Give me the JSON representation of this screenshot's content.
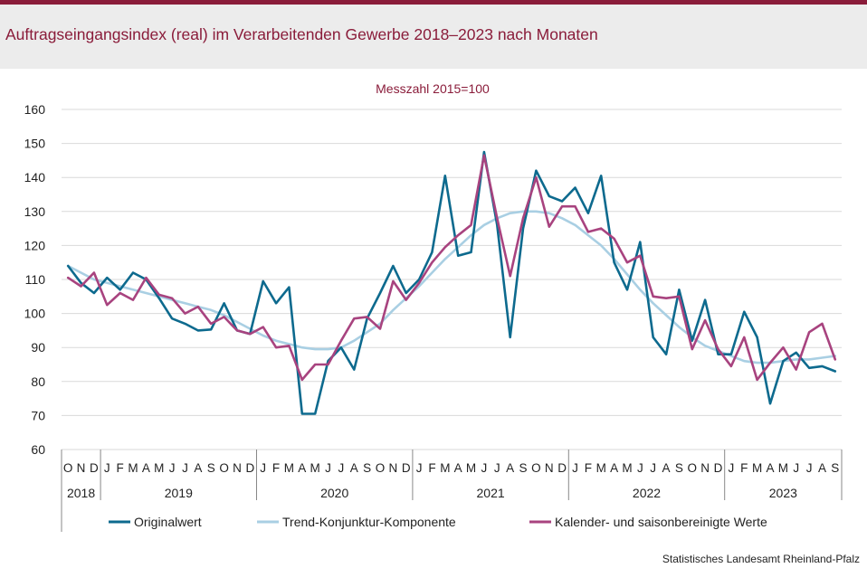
{
  "header": {
    "title": "Auftragseingangsindex (real) im Verarbeitenden Gewerbe 2018–2023 nach Monaten"
  },
  "footer": {
    "source": "Statistisches Landesamt Rheinland-Pfalz"
  },
  "colors": {
    "brand": "#8a1c3a",
    "original": "#0d6a8e",
    "trend": "#a9cfe3",
    "adjusted": "#a8437f"
  },
  "chart_data": {
    "type": "line",
    "subtitle": "Messzahl 2015=100",
    "ylim": [
      60,
      160
    ],
    "yticks": [
      60,
      70,
      80,
      90,
      100,
      110,
      120,
      130,
      140,
      150,
      160
    ],
    "grid": true,
    "legend_position": "bottom",
    "months": [
      "O",
      "N",
      "D",
      "J",
      "F",
      "M",
      "A",
      "M",
      "J",
      "J",
      "A",
      "S",
      "O",
      "N",
      "D",
      "J",
      "F",
      "M",
      "A",
      "M",
      "J",
      "J",
      "A",
      "S",
      "O",
      "N",
      "D",
      "J",
      "F",
      "M",
      "A",
      "M",
      "J",
      "J",
      "A",
      "S",
      "O",
      "N",
      "D",
      "J",
      "F",
      "M",
      "A",
      "M",
      "J",
      "J",
      "A",
      "S",
      "O",
      "N",
      "D",
      "J",
      "F",
      "M",
      "A",
      "M",
      "J",
      "J",
      "A",
      "S"
    ],
    "years": [
      {
        "label": "2018",
        "start": 0,
        "count": 3
      },
      {
        "label": "2019",
        "start": 3,
        "count": 12
      },
      {
        "label": "2020",
        "start": 15,
        "count": 12
      },
      {
        "label": "2021",
        "start": 27,
        "count": 12
      },
      {
        "label": "2022",
        "start": 39,
        "count": 12
      },
      {
        "label": "2023",
        "start": 51,
        "count": 9
      }
    ],
    "series": [
      {
        "name": "Originalwert",
        "color": "#0d6a8e",
        "values": [
          114,
          109,
          106,
          110.5,
          107,
          112,
          110,
          104.5,
          98.5,
          97,
          95,
          95.3,
          103,
          95,
          94,
          109.5,
          103,
          107.7,
          70.5,
          70.5,
          86,
          90,
          83.5,
          98.5,
          106,
          114,
          106,
          110,
          118,
          140.5,
          117,
          118,
          147.5,
          126,
          93,
          125,
          142,
          134.5,
          133,
          137,
          129.5,
          140.5,
          115,
          107,
          121,
          93,
          88,
          107,
          92,
          104,
          88,
          88,
          100.5,
          93,
          73.5,
          86,
          88.5,
          84,
          84.5,
          83
        ]
      },
      {
        "name": "Trend-Konjunktur-Komponente",
        "color": "#a9cfe3",
        "values": [
          114,
          112,
          110,
          109,
          108,
          107,
          106,
          105,
          104,
          103,
          102,
          101,
          99.5,
          97.5,
          95.5,
          93.5,
          92,
          91,
          90,
          89.5,
          89.5,
          90,
          92,
          94.5,
          97,
          101,
          104.5,
          108,
          112,
          116,
          119.5,
          123,
          126,
          128,
          129.5,
          130,
          130,
          129.5,
          128,
          126,
          123,
          120,
          116,
          111.5,
          107,
          103,
          99.5,
          96,
          93,
          90.5,
          89,
          87.5,
          86,
          85.5,
          85.5,
          86,
          86.5,
          86.5,
          87,
          87.5
        ]
      },
      {
        "name": "Kalender- und saisonbereinigte Werte",
        "color": "#a8437f",
        "values": [
          110.5,
          108,
          112,
          102.5,
          106,
          104,
          110.5,
          105.5,
          104.5,
          100,
          102,
          97,
          99,
          95,
          94,
          96,
          90,
          90.5,
          80.5,
          85,
          85,
          92,
          98.5,
          99,
          95.5,
          109.5,
          104,
          109,
          115,
          119.5,
          123,
          126,
          146.5,
          128,
          111,
          128,
          140,
          125.5,
          131.5,
          131.5,
          124,
          125,
          122,
          115,
          117,
          105,
          104.5,
          105,
          89.5,
          98,
          89.5,
          84.5,
          93,
          80.5,
          85.5,
          90,
          83.5,
          94.5,
          97,
          86.5
        ]
      }
    ]
  }
}
